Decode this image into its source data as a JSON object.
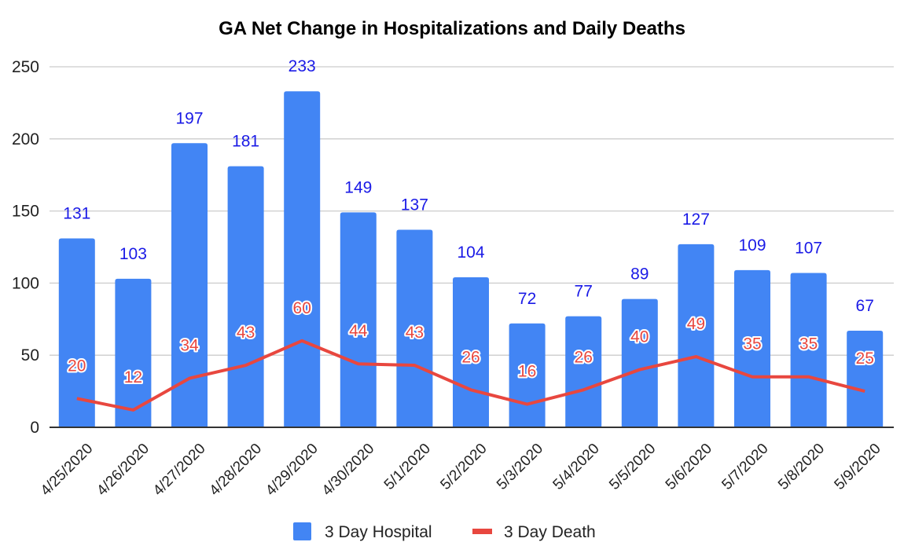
{
  "chart_data": {
    "type": "bar",
    "title": "GA Net Change in Hospitalizations and Daily Deaths",
    "xlabel": "",
    "ylabel": "",
    "ylim": [
      0,
      250
    ],
    "yticks": [
      0,
      50,
      100,
      150,
      200,
      250
    ],
    "grid": true,
    "legend_position": "bottom",
    "categories": [
      "4/25/2020",
      "4/26/2020",
      "4/27/2020",
      "4/28/2020",
      "4/29/2020",
      "4/30/2020",
      "5/1/2020",
      "5/2/2020",
      "5/3/2020",
      "5/4/2020",
      "5/5/2020",
      "5/6/2020",
      "5/7/2020",
      "5/8/2020",
      "5/9/2020"
    ],
    "series": [
      {
        "name": "3 Day Hospital",
        "type": "bar",
        "color": "#4285f4",
        "label_color": "#1a1ae6",
        "values": [
          131,
          103,
          197,
          181,
          233,
          149,
          137,
          104,
          72,
          77,
          89,
          127,
          109,
          107,
          67
        ]
      },
      {
        "name": "3 Day Death",
        "type": "line",
        "color": "#e8473f",
        "label_color": "#e8473f",
        "values": [
          20,
          12,
          34,
          43,
          60,
          44,
          43,
          26,
          16,
          26,
          40,
          49,
          35,
          35,
          25
        ]
      }
    ]
  }
}
